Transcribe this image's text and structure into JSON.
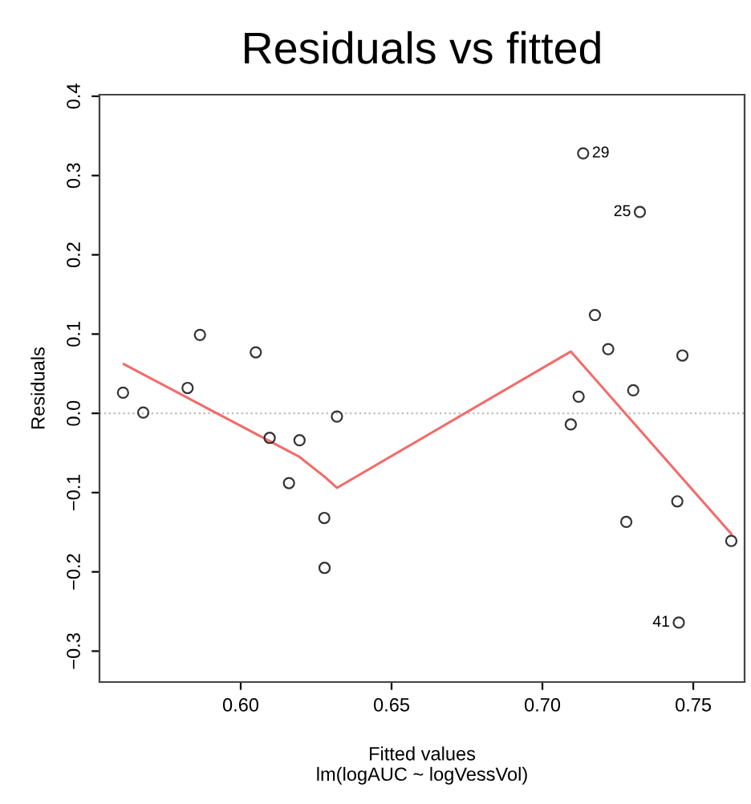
{
  "chart_data": {
    "type": "scatter",
    "title": "Residuals vs fitted",
    "xlabel": "Fitted values\nlm(logAUC ~ logVessVol)",
    "ylabel": "Residuals",
    "xlim": [
      0.5532,
      0.767
    ],
    "ylim": [
      -0.339,
      0.402
    ],
    "xticks": [
      {
        "value": 0.6,
        "label": "0.60"
      },
      {
        "value": 0.65,
        "label": "0.65"
      },
      {
        "value": 0.7,
        "label": "0.70"
      },
      {
        "value": 0.75,
        "label": "0.75"
      }
    ],
    "yticks": [
      {
        "value": -0.3,
        "label": "−0.3"
      },
      {
        "value": -0.2,
        "label": "−0.2"
      },
      {
        "value": -0.1,
        "label": "−0.1"
      },
      {
        "value": 0.0,
        "label": "0.0"
      },
      {
        "value": 0.1,
        "label": "0.1"
      },
      {
        "value": 0.2,
        "label": "0.2"
      },
      {
        "value": 0.3,
        "label": "0.3"
      },
      {
        "value": 0.4,
        "label": "0.4"
      }
    ],
    "grid": false,
    "legend": false,
    "series": [
      {
        "marker": "circle",
        "color": "#333333",
        "x": [
          0.561,
          0.5677,
          0.5824,
          0.5865,
          0.605,
          0.6096,
          0.6195,
          0.616,
          0.6277,
          0.6278,
          0.6319,
          0.7135,
          0.7323,
          0.7174,
          0.7218,
          0.7464,
          0.712,
          0.7301,
          0.7094,
          0.7447,
          0.7278,
          0.7626,
          0.7452
        ],
        "values": [
          0.026,
          0.001,
          0.032,
          0.099,
          0.077,
          -0.031,
          -0.034,
          -0.088,
          -0.132,
          -0.195,
          -0.004,
          0.328,
          0.254,
          0.124,
          0.081,
          0.073,
          0.021,
          0.029,
          -0.014,
          -0.111,
          -0.137,
          -0.161,
          -0.264
        ]
      },
      {
        "type": "line",
        "marker": "none",
        "line_style": "solid",
        "color": "#f26b6b",
        "x": [
          0.5613,
          0.6195,
          0.6278,
          0.6319,
          0.7094,
          0.7626
        ],
        "values": [
          0.062,
          -0.055,
          -0.08,
          -0.094,
          0.078,
          -0.152
        ]
      }
    ],
    "ref_lines": [
      {
        "axis": "y",
        "value": 0,
        "color": "#bbbbbb",
        "line_style": "dotted"
      }
    ],
    "annotations": [
      {
        "text": "29",
        "x": 0.7135,
        "y": 0.328
      },
      {
        "text": "25",
        "x": 0.7323,
        "y": 0.254
      },
      {
        "text": "41",
        "x": 0.7452,
        "y": -0.264
      }
    ]
  }
}
